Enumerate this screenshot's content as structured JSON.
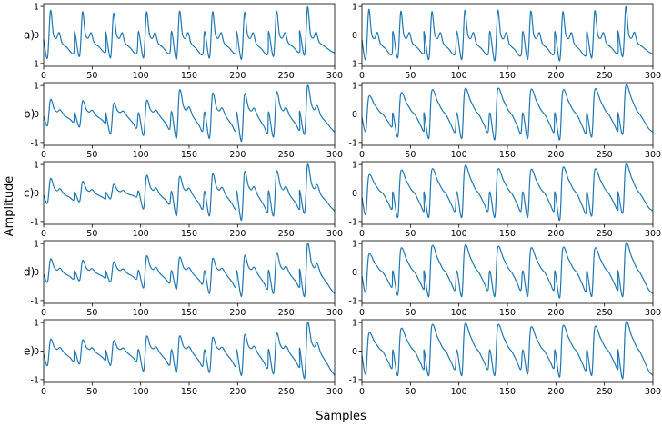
{
  "figure": {
    "ylabel": "Amplitude",
    "xlabel": "Samples",
    "line_color": "#1f77b4"
  },
  "chart_data": {
    "type": "line",
    "rows": 5,
    "cols": 2,
    "row_labels": [
      "a)",
      "b)",
      "c)",
      "d)",
      "e)"
    ],
    "xlim": [
      0,
      300
    ],
    "ylim": [
      -1.1,
      1.1
    ],
    "xticks": [
      0,
      50,
      100,
      150,
      200,
      250,
      300
    ],
    "yticks": [
      -1,
      0,
      1
    ],
    "grid": false,
    "peak_positions": [
      7,
      40,
      72,
      106,
      140,
      174,
      207,
      240,
      272
    ],
    "panels": [
      {
        "row": 0,
        "col": 0,
        "style": "sharp",
        "peak_heights": [
          0.85,
          0.8,
          0.75,
          0.8,
          0.82,
          0.8,
          0.78,
          0.82,
          0.98
        ],
        "trough_depths": [
          -0.8,
          -0.75,
          -0.8,
          -0.8,
          -0.85,
          -0.8,
          -0.85,
          -0.75,
          -0.7
        ]
      },
      {
        "row": 0,
        "col": 1,
        "style": "sharp",
        "peak_heights": [
          0.88,
          0.82,
          0.8,
          0.85,
          0.85,
          0.82,
          0.8,
          0.84,
          0.98
        ],
        "trough_depths": [
          -0.85,
          -0.8,
          -0.85,
          -0.85,
          -0.9,
          -0.85,
          -0.9,
          -0.8,
          -0.75
        ]
      },
      {
        "row": 1,
        "col": 0,
        "style": "mixed",
        "peak_heights": [
          0.5,
          0.45,
          0.35,
          0.45,
          0.82,
          0.7,
          0.68,
          0.75,
          0.98
        ],
        "trough_depths": [
          -0.4,
          -0.45,
          -0.7,
          -0.75,
          -0.85,
          -0.85,
          -0.95,
          -0.8,
          -0.7
        ]
      },
      {
        "row": 1,
        "col": 1,
        "style": "smooth",
        "peak_heights": [
          0.6,
          0.7,
          0.8,
          0.85,
          0.85,
          0.82,
          0.8,
          0.84,
          0.98
        ],
        "trough_depths": [
          -0.6,
          -0.8,
          -0.85,
          -0.85,
          -0.9,
          -0.85,
          -0.9,
          -0.8,
          -0.7
        ]
      },
      {
        "row": 2,
        "col": 0,
        "style": "mixed",
        "peak_heights": [
          0.5,
          0.4,
          0.3,
          0.6,
          0.55,
          0.65,
          0.72,
          0.75,
          0.98
        ],
        "trough_depths": [
          -0.35,
          -0.3,
          -0.2,
          -0.55,
          -0.8,
          -0.8,
          -0.95,
          -0.8,
          -0.7
        ]
      },
      {
        "row": 2,
        "col": 1,
        "style": "smooth",
        "peak_heights": [
          0.6,
          0.75,
          0.8,
          0.92,
          0.8,
          0.78,
          0.85,
          0.8,
          0.98
        ],
        "trough_depths": [
          -0.75,
          -0.85,
          -0.85,
          -0.85,
          -0.85,
          -0.85,
          -0.95,
          -0.8,
          -0.7
        ]
      },
      {
        "row": 3,
        "col": 0,
        "style": "mixed",
        "peak_heights": [
          0.45,
          0.4,
          0.35,
          0.55,
          0.5,
          0.45,
          0.55,
          0.65,
          0.98
        ],
        "trough_depths": [
          -0.35,
          -0.3,
          -0.35,
          -0.55,
          -0.6,
          -0.75,
          -0.85,
          -0.75,
          -0.85
        ]
      },
      {
        "row": 3,
        "col": 1,
        "style": "smooth",
        "peak_heights": [
          0.6,
          0.8,
          0.88,
          0.9,
          0.85,
          0.8,
          0.82,
          0.8,
          0.98
        ],
        "trough_depths": [
          -0.7,
          -0.8,
          -0.85,
          -0.85,
          -0.85,
          -0.85,
          -0.9,
          -0.85,
          -0.85
        ]
      },
      {
        "row": 4,
        "col": 0,
        "style": "mixed",
        "peak_heights": [
          0.4,
          0.38,
          0.35,
          0.5,
          0.5,
          0.45,
          0.55,
          0.6,
          0.98
        ],
        "trough_depths": [
          -0.5,
          -0.45,
          -0.5,
          -0.7,
          -0.75,
          -0.75,
          -0.85,
          -0.8,
          -0.95
        ]
      },
      {
        "row": 4,
        "col": 1,
        "style": "smooth",
        "peak_heights": [
          0.6,
          0.75,
          0.88,
          0.92,
          0.88,
          0.8,
          0.85,
          0.82,
          0.98
        ],
        "trough_depths": [
          -0.8,
          -0.85,
          -0.85,
          -0.85,
          -0.85,
          -0.8,
          -0.9,
          -0.85,
          -0.95
        ]
      }
    ]
  }
}
